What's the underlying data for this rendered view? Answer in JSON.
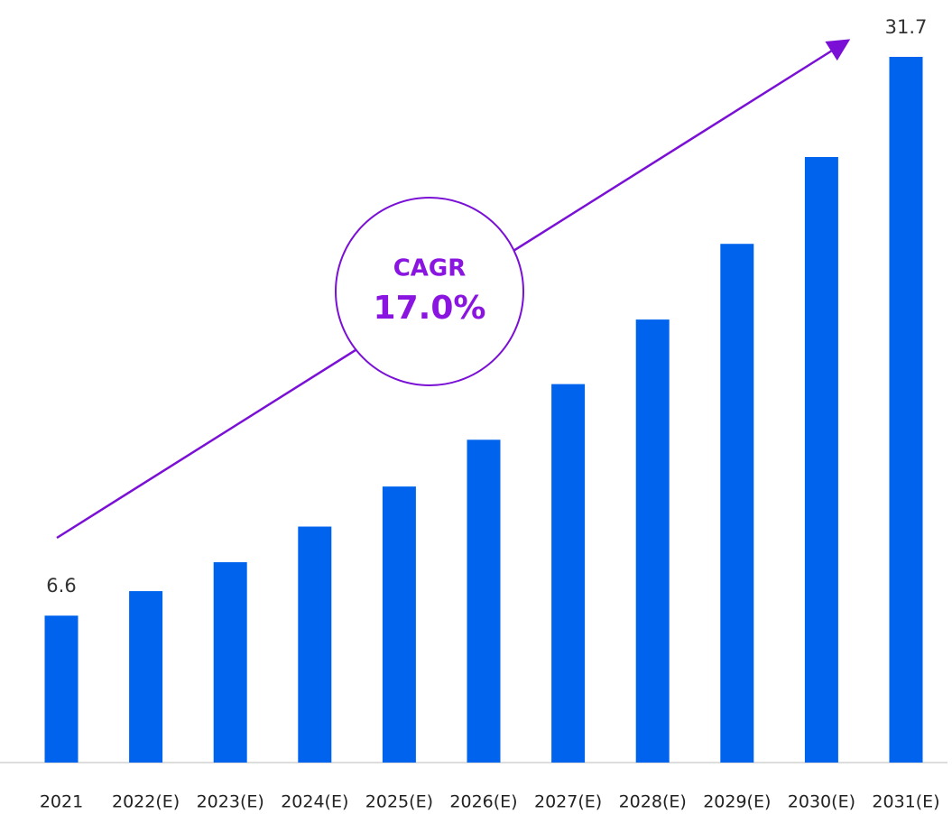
{
  "chart_data": {
    "type": "bar",
    "categories": [
      "2021",
      "2022(E)",
      "2023(E)",
      "2024(E)",
      "2025(E)",
      "2026(E)",
      "2027(E)",
      "2028(E)",
      "2029(E)",
      "2030(E)",
      "2031(E)"
    ],
    "values": [
      6.6,
      7.7,
      9.0,
      10.6,
      12.4,
      14.5,
      17.0,
      19.9,
      23.3,
      27.2,
      31.7
    ],
    "value_labels": [
      "6.6",
      null,
      null,
      null,
      null,
      null,
      null,
      null,
      null,
      null,
      "31.7"
    ],
    "color": "#0063ee",
    "annotation": {
      "label": "CAGR",
      "value": "17.0%"
    }
  }
}
